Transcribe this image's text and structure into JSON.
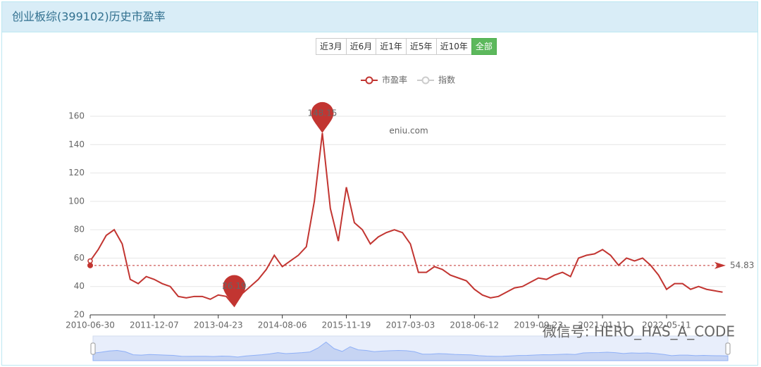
{
  "header": {
    "title": "创业板综(399102)历史市盈率"
  },
  "buttons": [
    "近3月",
    "近6月",
    "近1年",
    "近5年",
    "近10年",
    "全部"
  ],
  "active_button": "全部",
  "watermarks": [
    "eniu.com",
    "微信号: HERO_HAS_A_CODE"
  ],
  "chart_data": {
    "type": "line",
    "x": [
      "2010-06-30",
      null,
      null,
      null,
      null,
      null,
      null,
      null,
      "2011-12-07",
      null,
      null,
      null,
      null,
      null,
      null,
      null,
      "2013-04-23",
      null,
      null,
      null,
      null,
      null,
      null,
      null,
      "2014-08-06",
      null,
      null,
      null,
      null,
      null,
      null,
      null,
      "2015-11-19",
      null,
      null,
      null,
      null,
      null,
      null,
      null,
      "2017-03-03",
      null,
      null,
      null,
      null,
      null,
      null,
      null,
      "2018-06-12",
      null,
      null,
      null,
      null,
      null,
      null,
      null,
      "2019-09-23",
      null,
      null,
      null,
      null,
      null,
      null,
      null,
      "2021-01-11",
      null,
      null,
      null,
      null,
      null,
      null,
      null,
      "2022-05-11",
      null,
      null,
      null,
      null,
      null,
      null,
      null
    ],
    "series": [
      {
        "name": "市盈率",
        "color": "#c23531",
        "values": [
          58,
          66,
          76,
          80,
          70,
          45,
          42,
          47,
          45,
          42,
          40,
          33,
          32,
          33,
          33,
          31,
          34,
          33,
          26.19,
          35,
          40,
          45,
          52,
          62,
          54,
          58,
          62,
          68,
          100,
          148.15,
          95,
          72,
          110,
          85,
          80,
          70,
          75,
          78,
          80,
          78,
          70,
          50,
          50,
          54,
          52,
          48,
          46,
          44,
          38,
          34,
          32,
          33,
          36,
          39,
          40,
          43,
          46,
          45,
          48,
          50,
          47,
          60,
          62,
          63,
          66,
          62,
          55,
          60,
          58,
          60,
          55,
          48,
          38,
          42,
          42,
          38,
          40,
          38,
          37,
          36
        ]
      }
    ],
    "inactive_legend": [
      "指数"
    ],
    "mean_line": 54.83,
    "ylim": [
      20,
      160
    ],
    "yticks": [
      20,
      40,
      60,
      80,
      100,
      120,
      140,
      160
    ],
    "grid": true
  }
}
